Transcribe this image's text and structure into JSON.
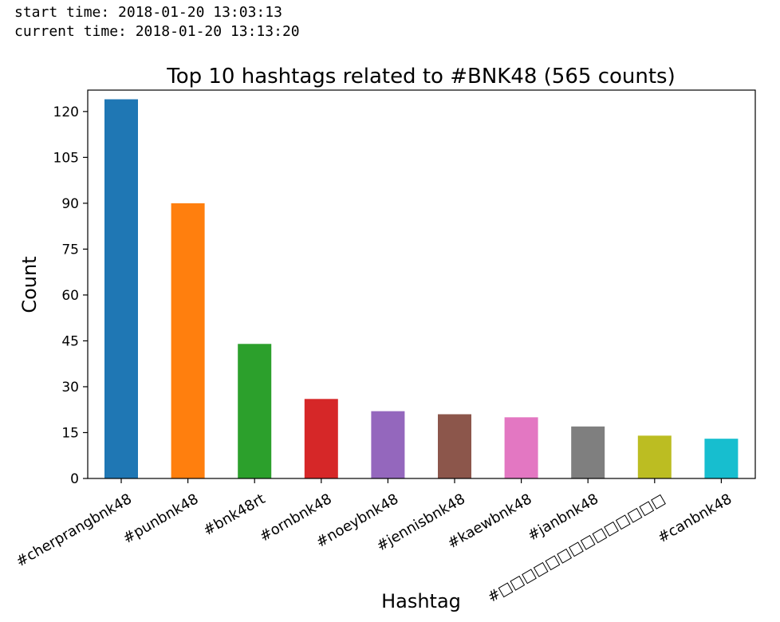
{
  "header": {
    "start_line": "start time: 2018-01-20 13:03:13",
    "current_line": "current time: 2018-01-20 13:13:20"
  },
  "chart_data": {
    "type": "bar",
    "title": "Top 10 hashtags related to #BNK48 (565 counts)",
    "xlabel": "Hashtag",
    "ylabel": "Count",
    "ylim": [
      0,
      127
    ],
    "yticks": [
      0,
      15,
      30,
      45,
      60,
      75,
      90,
      105,
      120
    ],
    "grid": false,
    "categories": [
      "#cherprangbnk48",
      "#punbnk48",
      "#bnk48rt",
      "#ornbnk48",
      "#noeybnk48",
      "#jennisbnk48",
      "#kaewbnk48",
      "#janbnk48",
      "#□□□□□□□□□□□□□□",
      "#canbnk48"
    ],
    "values": [
      124,
      90,
      44,
      26,
      22,
      21,
      20,
      17,
      14,
      13
    ],
    "colors": [
      "#1f77b4",
      "#ff7f0e",
      "#2ca02c",
      "#d62728",
      "#9467bd",
      "#8c564b",
      "#e377c2",
      "#7f7f7f",
      "#bcbd22",
      "#17becf"
    ]
  }
}
